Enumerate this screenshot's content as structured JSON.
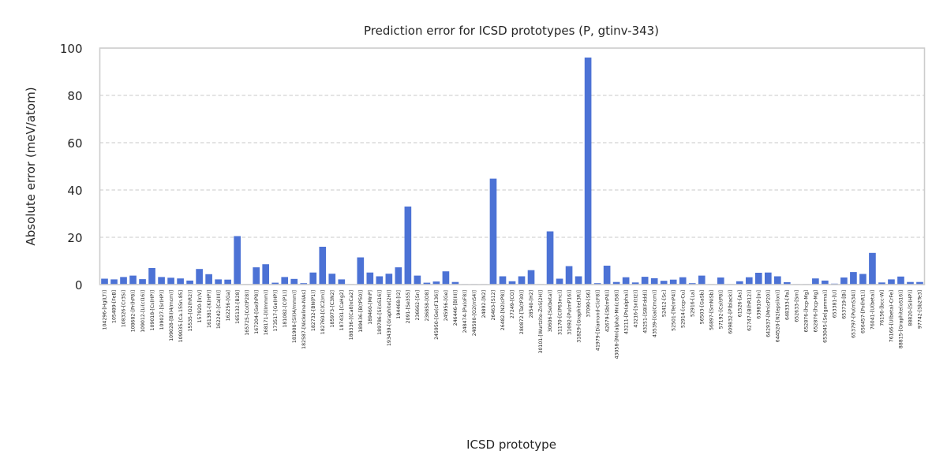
{
  "chart_data": {
    "type": "bar",
    "title": "Prediction error for ICSD prototypes (P, gtinv-343)",
    "xlabel": "ICSD prototype",
    "ylabel": "Absolute error (meV/atom)",
    "ylim": [
      0,
      100
    ],
    "yticks": [
      0,
      20,
      40,
      60,
      80,
      100
    ],
    "grid": "y-dashed",
    "bar_color": "#4c72d5",
    "categories": [
      "104296-[Hg(LT)]",
      "105489-[FeB]",
      "108326-[Cr3Si]",
      "108682-[Pr(hP8)]",
      "109012-[Li(cI16)]",
      "109018-[Cs(HP)]",
      "109027-[Sr(HP)]",
      "109028-[Bi(I4/mcm)]",
      "109035-[Ca.15Sn.85]",
      "15535-[O2(hR2)]",
      "157920-[Ir/V]",
      "161381-[K(HP)]",
      "162242-[Ca(III)]",
      "162256-[Ga]",
      "165132-[B28]",
      "165725-[Co(tP28)]",
      "167204-[Ge(hP8)]",
      "168171-[I(Immm)]",
      "173517-[Ge(HP)]",
      "181082-[C(P1)]",
      "181908-[Si(I4/mmm)]",
      "182587-[Nickeline-NiAs]",
      "182732-[BN(P1)]",
      "182760-[C(C2/m)]",
      "185973-[C3N2]",
      "187431-[CaHg2]",
      "188336-[(Ca8)xCa2]",
      "189436-[B(tP50)]",
      "189460-[MnP]",
      "189786-[Si(oS16)]",
      "193439-[Graphite(2H)]",
      "194468-[I2]",
      "2091-[Se3S5]",
      "236662-[Sn]",
      "236858-[O8]",
      "245950-[Ge(cF136)]",
      "245956-[Ge]",
      "246446-[B(III)]",
      "248474-[Pu(oF8)]",
      "248500-[O2(mS4)]",
      "24892-[N2]",
      "26463-[S12]",
      "26482-[N2(cP8)]",
      "27249-[CO]",
      "280872-[Ta(tP30)]",
      "28540-[H2]",
      "30101-[Wurtzite-ZnS(2H)]",
      "30606-[Se(beta)]",
      "31170-[C(P63mc)]",
      "31692-[Pu(mP16)]",
      "31829-[Graphite(3R)]",
      "37090-[S6]",
      "41979-[Diamond-C(cF8)]",
      "42679-[Sb(mP4)]",
      "43058-[Mn(alpha)-Mn(cI58)]",
      "43211-[Po(alpha)]",
      "43216-[Sn(tI2)]",
      "43251-[S8(Fddd)]",
      "43539-[Ga(Cmcm)]",
      "52412-[Sc]",
      "52501-[Te(mP4)]",
      "52914-[ccp-Cu]",
      "52916-[La]",
      "56503-[GaSb]",
      "56897-[SmNiSb]",
      "57192-[Cs(tP8)]",
      "609832-[P(black)]",
      "61526-[As]",
      "62747-[B(hR12)]",
      "639810-[In]",
      "642937-[Mn(cP20)]",
      "644520-[N2(epsilon)]",
      "648333-[Pa]",
      "652633-[Sm]",
      "652876-[hcp-Mg]",
      "652876-[hcp-Mg]",
      "653045-[Se(gamma)]",
      "653381-[U]",
      "653719-[Bi]",
      "653797-[Pu(mS34)]",
      "656457-[Po(hR1)]",
      "76041-[U(beta)]",
      "76156-[bcc-W]",
      "76166-[U(beta)-CrFe]",
      "88815-[Graphite(oS16)]",
      "88820-[Si(HP)]",
      "97742-[Sb2Te3]"
    ],
    "values": [
      2.5,
      2.2,
      3.2,
      3.8,
      2.3,
      7.0,
      3.2,
      2.9,
      2.6,
      1.7,
      6.6,
      4.4,
      2.2,
      2.1,
      20.5,
      0.2,
      7.3,
      8.6,
      0.8,
      3.2,
      2.4,
      0.6,
      5.1,
      16.0,
      4.6,
      2.2,
      0.2,
      11.5,
      5.1,
      3.5,
      4.6,
      7.3,
      33.0,
      3.8,
      0.8,
      1.3,
      5.6,
      1.1,
      0.2,
      0.2,
      0.2,
      44.8,
      3.5,
      1.4,
      3.5,
      6.1,
      0.2,
      22.5,
      2.5,
      7.8,
      3.5,
      96.0,
      0.6,
      8.0,
      1.1,
      3.1,
      0.9,
      3.3,
      2.7,
      1.6,
      2.1,
      3.1,
      0.6,
      3.8,
      0.2,
      3.0,
      0.2,
      1.4,
      3.1,
      5.0,
      5.1,
      3.5,
      1.0,
      0.2,
      0.2,
      2.6,
      1.7,
      0.4,
      3.0,
      5.3,
      4.5,
      13.4,
      0.9,
      2.2,
      3.4,
      1.1,
      1.1
    ]
  }
}
